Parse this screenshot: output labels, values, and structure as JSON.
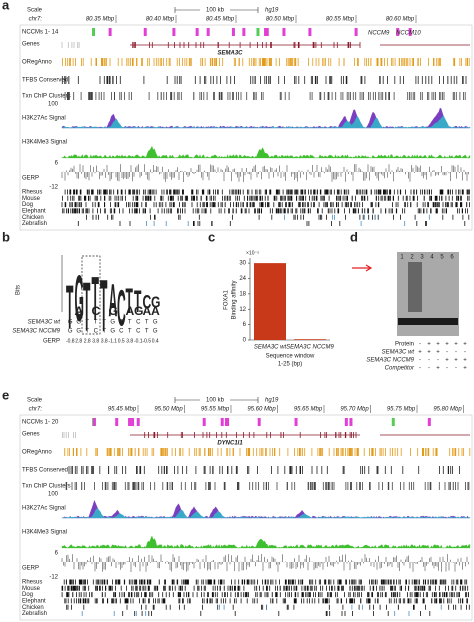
{
  "panels": {
    "a": {
      "label": "a",
      "scale_label": "Scale",
      "chrom": "chr7:",
      "scale_bar": "100 kb",
      "assembly": "hg19",
      "positions": [
        "80.35 Mbp",
        "80.40 Mbp",
        "80.45 Mbp",
        "80.50 Mbp",
        "80.55 Mbp",
        "80.60 Mbp"
      ],
      "tracks": [
        "NCCMs 1- 14",
        "Genes",
        "ORegAnno",
        "TFBS Conserved",
        "Txn ChIP Clusters",
        "H3K27Ac Signal",
        "H3K4Me3 Signal",
        "GERP"
      ],
      "gene": "SEMA3C",
      "annotations": [
        "NCCM9",
        "NCCM10"
      ],
      "h3k27_max": 100,
      "gerp_max": 6,
      "gerp_min": -12,
      "species": [
        "Rhesus",
        "Mouse",
        "Dog",
        "Elephant",
        "Chicken",
        "Zebrafish"
      ]
    },
    "b": {
      "label": "b",
      "ylabel": "Bits",
      "logo": [
        [
          {
            "letter": "T",
            "height": 1.6
          }
        ],
        [
          {
            "letter": "A",
            "height": 0.3
          },
          {
            "letter": "G",
            "height": 1.7
          }
        ],
        [
          {
            "letter": "T",
            "height": 1.8
          }
        ],
        [
          {
            "letter": "C",
            "height": 0.3
          },
          {
            "letter": "T",
            "height": 1.6
          }
        ],
        [
          {
            "letter": "T",
            "height": 1.9
          }
        ],
        [
          {
            "letter": "G",
            "height": 0.3
          },
          {
            "letter": "A",
            "height": 1.2
          }
        ],
        [
          {
            "letter": "C",
            "height": 1.3
          }
        ],
        [
          {
            "letter": "A",
            "height": 0.3
          },
          {
            "letter": "T",
            "height": 0.9
          }
        ],
        [
          {
            "letter": "G",
            "height": 0.3
          },
          {
            "letter": "T",
            "height": 0.8
          }
        ],
        [
          {
            "letter": "A",
            "height": 0.3
          },
          {
            "letter": "C",
            "height": 0.5
          }
        ],
        [
          {
            "letter": "A",
            "height": 0.3
          },
          {
            "letter": "G",
            "height": 0.4
          }
        ]
      ],
      "rows": [
        {
          "name": "SEMA3C wt",
          "seq": [
            "G",
            "G",
            "T",
            "T",
            "T",
            "G",
            "C",
            "T",
            "C",
            "T",
            "G"
          ]
        },
        {
          "name": "SEMA3C NCCM9",
          "seq": [
            "G",
            "G",
            "T",
            "C",
            "T",
            "G",
            "C",
            "T",
            "C",
            "T",
            "G"
          ]
        }
      ],
      "gerp_label": "GERP",
      "gerp": [
        -0.8,
        2.8,
        2.8,
        3.8,
        3.8,
        -1.1,
        0.5,
        3.8,
        -0.1,
        -0.5,
        0.4
      ]
    },
    "c": {
      "label": "c",
      "chart_data": {
        "type": "bar",
        "exponent": "×10⁻⁵",
        "ylabel": [
          "FOXA1",
          "Binding affinity"
        ],
        "categories": [
          "SEMA3C wt",
          "SEMA3C NCCM9"
        ],
        "values": [
          30,
          0.3
        ],
        "color": "#c8391a",
        "ylim": [
          0,
          32
        ],
        "yticks": [
          0,
          6,
          12,
          18,
          24,
          30
        ],
        "xlabel": [
          "Sequence window",
          "1-25 (bp)"
        ]
      }
    },
    "d": {
      "label": "d",
      "lanes": [
        "1",
        "2",
        "3",
        "4",
        "5",
        "6"
      ],
      "rows": [
        {
          "name": "Protein",
          "marks": [
            "-",
            "+",
            "+",
            "+",
            "+",
            "+"
          ]
        },
        {
          "name": "SEMA3C wt",
          "marks": [
            "+",
            "+",
            "+",
            "-",
            "-",
            "-"
          ]
        },
        {
          "name": "SEMA3C NCCM9",
          "marks": [
            "-",
            "-",
            "-",
            "+",
            "+",
            "+"
          ]
        },
        {
          "name": "Competitor",
          "marks": [
            "-",
            "-",
            "+",
            "-",
            "-",
            "+"
          ]
        }
      ]
    },
    "e": {
      "label": "e",
      "scale_label": "Scale",
      "chrom": "chr7:",
      "scale_bar": "100 kb",
      "assembly": "hg19",
      "positions": [
        "95.45 Mbp",
        "95.50 Mbp",
        "95.55 Mbp",
        "95.60 Mbp",
        "95.65 Mbp",
        "95.70 Mbp",
        "95.75 Mbp",
        "95.80 Mbp"
      ],
      "tracks": [
        "NCCMs 1- 20",
        "Genes",
        "ORegAnno",
        "TFBS Conserved",
        "Txn ChIP Clusters",
        "H3K27Ac Signal",
        "H3K4Me3 Signal",
        "GERP"
      ],
      "gene": "DYNC1I1",
      "h3k27_max": 100,
      "gerp_max": 6,
      "gerp_min": -12,
      "species": [
        "Rhesus",
        "Mouse",
        "Dog",
        "Elephant",
        "Chicken",
        "Zebrafish"
      ]
    }
  }
}
